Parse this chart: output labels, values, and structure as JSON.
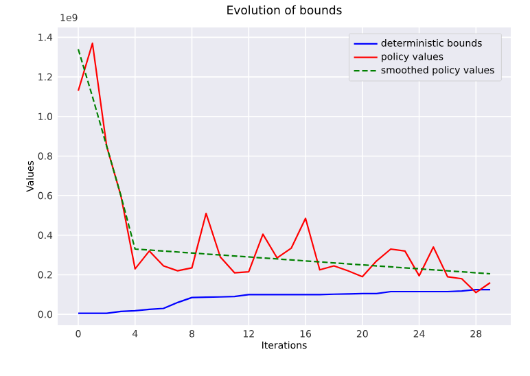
{
  "chart_data": {
    "type": "line",
    "title": "Evolution of bounds",
    "xlabel": "Iterations",
    "ylabel": "Values",
    "annotations": [
      "1e9"
    ],
    "x": [
      0,
      1,
      2,
      3,
      4,
      5,
      6,
      7,
      8,
      9,
      10,
      11,
      12,
      13,
      14,
      15,
      16,
      17,
      18,
      19,
      20,
      21,
      22,
      23,
      24,
      25,
      26,
      27,
      28,
      29
    ],
    "series": [
      {
        "name": "deterministic bounds",
        "color": "#0000ff",
        "values": [
          0.005,
          0.005,
          0.005,
          0.015,
          0.018,
          0.025,
          0.03,
          0.06,
          0.085,
          0.087,
          0.088,
          0.09,
          0.1,
          0.1,
          0.1,
          0.1,
          0.1,
          0.1,
          0.102,
          0.103,
          0.105,
          0.105,
          0.115,
          0.115,
          0.115,
          0.115,
          0.115,
          0.118,
          0.125,
          0.125
        ]
      },
      {
        "name": "policy values",
        "color": "#ff0000",
        "values": [
          1.13,
          1.37,
          0.85,
          0.6,
          0.23,
          0.32,
          0.245,
          0.22,
          0.235,
          0.51,
          0.29,
          0.21,
          0.215,
          0.405,
          0.285,
          0.335,
          0.485,
          0.225,
          0.245,
          0.22,
          0.19,
          0.27,
          0.33,
          0.32,
          0.195,
          0.34,
          0.19,
          0.18,
          0.11,
          0.16
        ]
      },
      {
        "name": "smoothed policy values",
        "color": "#008000",
        "line_style": "dashed",
        "x": [
          0,
          1,
          2,
          3,
          4,
          29
        ],
        "values": [
          1.34,
          1.1,
          0.85,
          0.6,
          0.33,
          0.205
        ]
      }
    ],
    "xlim": [
      -1.45,
      30.45
    ],
    "ylim": [
      -0.055,
      1.45
    ],
    "xticks": [
      0,
      4,
      8,
      12,
      16,
      20,
      24,
      28
    ],
    "yticks": [
      {
        "value": 0,
        "label": "0.0"
      },
      0.2,
      0.4,
      0.6,
      0.8,
      {
        "value": 1,
        "label": "1.0"
      },
      1.2,
      1.4
    ],
    "grid": true,
    "legend": "top right",
    "line_style": "solid"
  }
}
